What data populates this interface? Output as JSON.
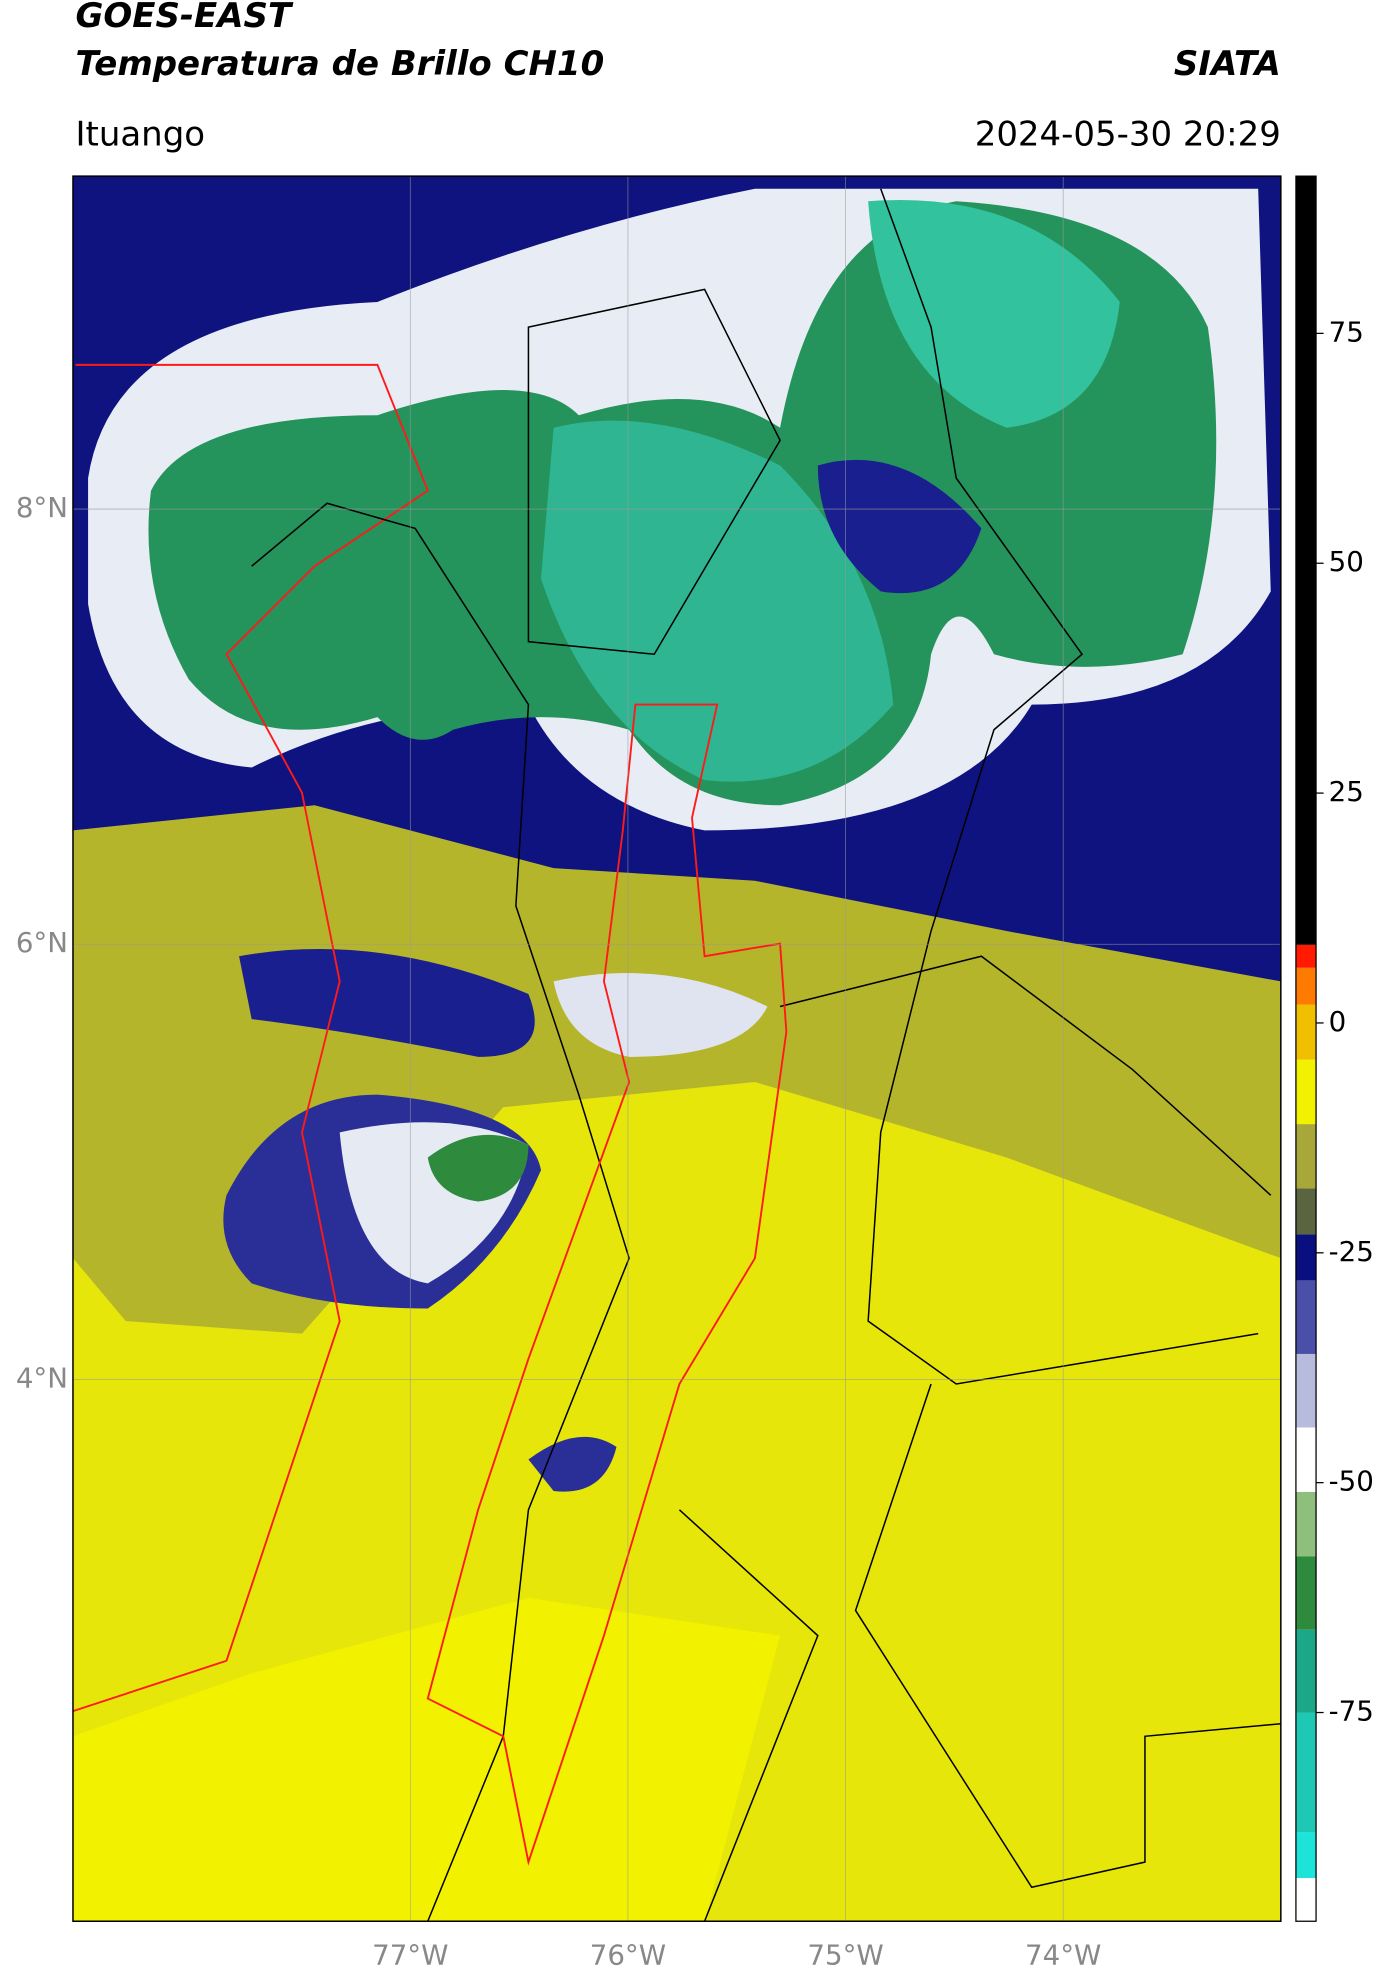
{
  "chart_data": {
    "type": "map",
    "title": "GOES-EAST",
    "subtitle": "Temperatura de Brillo CH10",
    "source": "SIATA",
    "location": "Ituango",
    "datetime": "2024-05-30 20:29",
    "xlim": [
      -78.55,
      -73.0
    ],
    "ylim": [
      1.51,
      9.53
    ],
    "xticks": [
      {
        "value": -77,
        "label": "77°W"
      },
      {
        "value": -76,
        "label": "76°W"
      },
      {
        "value": -75,
        "label": "75°W"
      },
      {
        "value": -74,
        "label": "74°W"
      }
    ],
    "yticks": [
      {
        "value": 8,
        "label": "8°N"
      },
      {
        "value": 6,
        "label": "6°N"
      },
      {
        "value": 4,
        "label": "4°N"
      }
    ],
    "grid": true,
    "colorbar": {
      "clim": [
        -97.7,
        92.1
      ],
      "ticks": [
        75,
        50,
        25,
        0,
        -25,
        -50,
        -75
      ],
      "colorscale": [
        [
          -97.7,
          "#ffffff"
        ],
        [
          -93,
          "#1de3d8"
        ],
        [
          -88,
          "#1fc8b4"
        ],
        [
          -75,
          "#1aa889"
        ],
        [
          -66,
          "#2e8a3c"
        ],
        [
          -58,
          "#8fbf7d"
        ],
        [
          -51,
          "#ffffff"
        ],
        [
          -44,
          "#b8bcdc"
        ],
        [
          -36,
          "#4a4fa8"
        ],
        [
          -28,
          "#0a0f80"
        ],
        [
          -23,
          "#5b6440"
        ],
        [
          -18,
          "#a8a83a"
        ],
        [
          -11,
          "#f2f200"
        ],
        [
          -4,
          "#f0c000"
        ],
        [
          2,
          "#ff7a00"
        ],
        [
          6,
          "#ff1a00"
        ],
        [
          8.5,
          "#000000"
        ]
      ]
    }
  }
}
